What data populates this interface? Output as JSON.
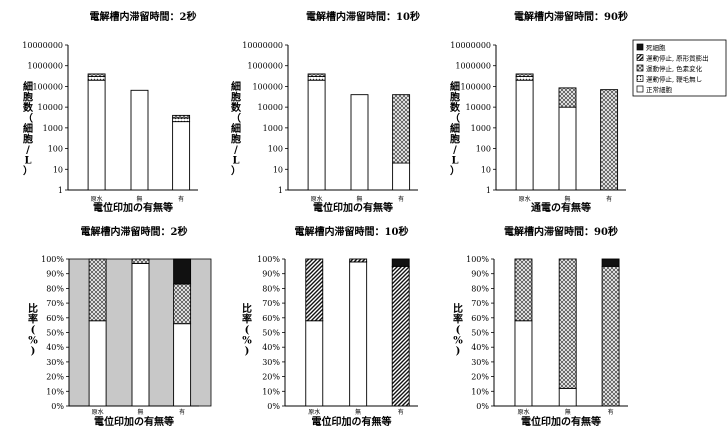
{
  "legend": {
    "items": [
      {
        "label": "死細胞",
        "fill": "black"
      },
      {
        "label": "運動停止, 原形質膨出",
        "fill": "hatch"
      },
      {
        "label": "運動停止, 色素変化",
        "fill": "cross"
      },
      {
        "label": "運動停止, 鞭毛無し",
        "fill": "dots"
      },
      {
        "label": "正常細胞",
        "fill": "white"
      }
    ]
  },
  "colors": {
    "black": "#111111",
    "panel_gray": "#c8c8c8",
    "cross": "#777777"
  },
  "chart_data": [
    {
      "type": "bar",
      "stacked": true,
      "ylog": true,
      "ylim": [
        1,
        10000000
      ],
      "title": "電解槽内滞留時間：2秒",
      "xlabel": "電位印加の有無等",
      "ylabel": "細胞数（細胞/L）",
      "yticks": [
        "1",
        "10",
        "100",
        "1000",
        "10000",
        "100000",
        "1000000",
        "10000000"
      ],
      "categories": [
        "原水",
        "無",
        "有"
      ],
      "series": [
        {
          "name": "正常細胞",
          "fill": "white",
          "values": [
            200000,
            65000,
            2000
          ]
        },
        {
          "name": "運動停止, 鞭毛無し",
          "fill": "dots",
          "values": [
            100000,
            0,
            1000
          ]
        },
        {
          "name": "運動停止, 色素変化",
          "fill": "cross",
          "values": [
            100000,
            0,
            1000
          ]
        }
      ]
    },
    {
      "type": "bar",
      "stacked": true,
      "ylog": true,
      "ylim": [
        1,
        10000000
      ],
      "title": "電解槽内滞留時間：10秒",
      "xlabel": "電位印加の有無等",
      "ylabel": "細胞数（細胞/L）",
      "yticks": [
        "1",
        "10",
        "100",
        "1000",
        "10000",
        "100000",
        "1000000",
        "10000000"
      ],
      "categories": [
        "原水",
        "無",
        "有"
      ],
      "series": [
        {
          "name": "正常細胞",
          "fill": "white",
          "values": [
            200000,
            40000,
            20
          ]
        },
        {
          "name": "運動停止, 鞭毛無し",
          "fill": "dots",
          "values": [
            100000,
            0,
            0
          ]
        },
        {
          "name": "運動停止, 色素変化",
          "fill": "cross",
          "values": [
            100000,
            0,
            39980
          ]
        }
      ]
    },
    {
      "type": "bar",
      "stacked": true,
      "ylog": true,
      "ylim": [
        1,
        10000000
      ],
      "title": "電解槽内滞留時間：90秒",
      "xlabel": "通電の有無等",
      "ylabel": "細胞数（細胞/L）",
      "yticks": [
        "1",
        "10",
        "100",
        "1000",
        "10000",
        "100000",
        "1000000",
        "10000000"
      ],
      "categories": [
        "原水",
        "無",
        "有"
      ],
      "series": [
        {
          "name": "正常細胞",
          "fill": "white",
          "values": [
            200000,
            10000,
            0
          ]
        },
        {
          "name": "運動停止, 鞭毛無し",
          "fill": "dots",
          "values": [
            100000,
            0,
            0
          ]
        },
        {
          "name": "運動停止, 色素変化",
          "fill": "cross",
          "values": [
            100000,
            75000,
            70000
          ]
        }
      ]
    },
    {
      "type": "bar",
      "stacked": true,
      "ylim": [
        0,
        100
      ],
      "title": "電解槽内滞留時間：2秒",
      "xlabel": "電位印加の有無等",
      "ylabel": "比率(%)",
      "yticks": [
        "0%",
        "10%",
        "20%",
        "30%",
        "40%",
        "50%",
        "60%",
        "70%",
        "80%",
        "90%",
        "100%"
      ],
      "categories": [
        "原水",
        "無",
        "有"
      ],
      "background": "gray",
      "series": [
        {
          "name": "正常細胞",
          "fill": "white",
          "values": [
            58,
            97,
            56
          ]
        },
        {
          "name": "運動停止, 鞭毛無し",
          "fill": "dots",
          "values": [
            0,
            0,
            0
          ]
        },
        {
          "name": "運動停止, 色素変化",
          "fill": "cross",
          "values": [
            42,
            3,
            27
          ]
        },
        {
          "name": "運動停止, 原形質膨出",
          "fill": "hatch",
          "values": [
            0,
            0,
            0
          ]
        },
        {
          "name": "死細胞",
          "fill": "black",
          "values": [
            0,
            0,
            17
          ]
        }
      ]
    },
    {
      "type": "bar",
      "stacked": true,
      "ylim": [
        0,
        100
      ],
      "title": "電解槽内滞留時間：10秒",
      "xlabel": "電位印加の有無等",
      "ylabel": "比率(%)",
      "yticks": [
        "0%",
        "10%",
        "20%",
        "30%",
        "40%",
        "50%",
        "60%",
        "70%",
        "80%",
        "90%",
        "100%"
      ],
      "categories": [
        "原水",
        "無",
        "有"
      ],
      "series": [
        {
          "name": "正常細胞",
          "fill": "white",
          "values": [
            58,
            98,
            0
          ]
        },
        {
          "name": "運動停止, 鞭毛無し",
          "fill": "dots",
          "values": [
            0,
            0,
            0
          ]
        },
        {
          "name": "運動停止, 色素変化",
          "fill": "cross",
          "values": [
            0,
            0,
            0
          ]
        },
        {
          "name": "運動停止, 原形質膨出",
          "fill": "hatch",
          "values": [
            42,
            2,
            95
          ]
        },
        {
          "name": "死細胞",
          "fill": "black",
          "values": [
            0,
            0,
            5
          ]
        }
      ]
    },
    {
      "type": "bar",
      "stacked": true,
      "ylim": [
        0,
        100
      ],
      "title": "電解槽内滞留時間：90秒",
      "xlabel": "電位印加の有無等",
      "ylabel": "比率(%)",
      "yticks": [
        "0%",
        "10%",
        "20%",
        "30%",
        "40%",
        "50%",
        "60%",
        "70%",
        "80%",
        "90%",
        "100%"
      ],
      "categories": [
        "原水",
        "無",
        "有"
      ],
      "series": [
        {
          "name": "正常細胞",
          "fill": "white",
          "values": [
            58,
            12,
            0
          ]
        },
        {
          "name": "運動停止, 鞭毛無し",
          "fill": "dots",
          "values": [
            0,
            0,
            0
          ]
        },
        {
          "name": "運動停止, 色素変化",
          "fill": "cross",
          "values": [
            42,
            88,
            95
          ]
        },
        {
          "name": "運動停止, 原形質膨出",
          "fill": "hatch",
          "values": [
            0,
            0,
            0
          ]
        },
        {
          "name": "死細胞",
          "fill": "black",
          "values": [
            0,
            0,
            5
          ]
        }
      ]
    }
  ]
}
